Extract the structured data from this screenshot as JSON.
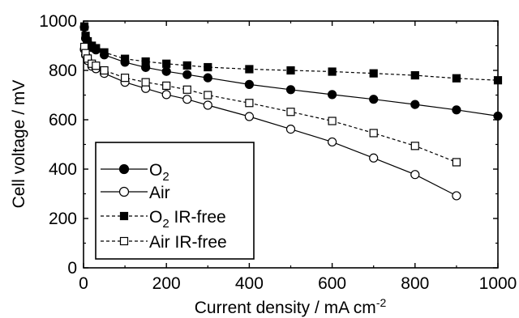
{
  "chart_data": {
    "type": "line",
    "xlabel": "Current density / mA cm",
    "xlabel_sup": "-2",
    "ylabel": "Cell voltage / mV",
    "xlim": [
      0,
      1000
    ],
    "ylim": [
      0,
      1000
    ],
    "xticks": [
      "0",
      "200",
      "400",
      "600",
      "800",
      "1000"
    ],
    "yticks": [
      "0",
      "200",
      "400",
      "600",
      "800",
      "1000"
    ],
    "grid": false,
    "legend_position": "bottom-left",
    "series": [
      {
        "name": "O",
        "name_sub": "2",
        "marker": "filled-circle",
        "line": "solid",
        "x": [
          2,
          5,
          10,
          20,
          30,
          50,
          100,
          150,
          200,
          250,
          300,
          400,
          500,
          600,
          700,
          800,
          900,
          1000
        ],
        "y": [
          975,
          930,
          912,
          893,
          883,
          863,
          833,
          812,
          796,
          783,
          770,
          743,
          722,
          702,
          683,
          662,
          640,
          615
        ]
      },
      {
        "name": "Air",
        "marker": "open-circle",
        "line": "solid",
        "x": [
          2,
          5,
          10,
          20,
          30,
          50,
          100,
          150,
          200,
          250,
          300,
          400,
          500,
          600,
          700,
          800,
          900
        ],
        "y": [
          885,
          862,
          840,
          817,
          807,
          788,
          752,
          727,
          702,
          683,
          659,
          613,
          562,
          510,
          445,
          378,
          292
        ]
      },
      {
        "name": "O",
        "name_sub": "2",
        "name_suffix": " IR-free",
        "marker": "filled-square",
        "line": "dashed",
        "x": [
          2,
          5,
          10,
          20,
          30,
          50,
          100,
          150,
          200,
          250,
          300,
          400,
          500,
          600,
          700,
          800,
          900,
          1000
        ],
        "y": [
          978,
          940,
          918,
          900,
          890,
          873,
          847,
          836,
          827,
          820,
          813,
          805,
          800,
          795,
          788,
          780,
          768,
          760
        ]
      },
      {
        "name": "Air IR-free",
        "marker": "open-square",
        "line": "dashed",
        "x": [
          2,
          5,
          10,
          20,
          30,
          50,
          100,
          150,
          200,
          250,
          300,
          400,
          500,
          600,
          700,
          800,
          900
        ],
        "y": [
          895,
          870,
          848,
          827,
          819,
          800,
          770,
          752,
          738,
          722,
          700,
          668,
          632,
          595,
          546,
          494,
          428
        ]
      }
    ]
  }
}
